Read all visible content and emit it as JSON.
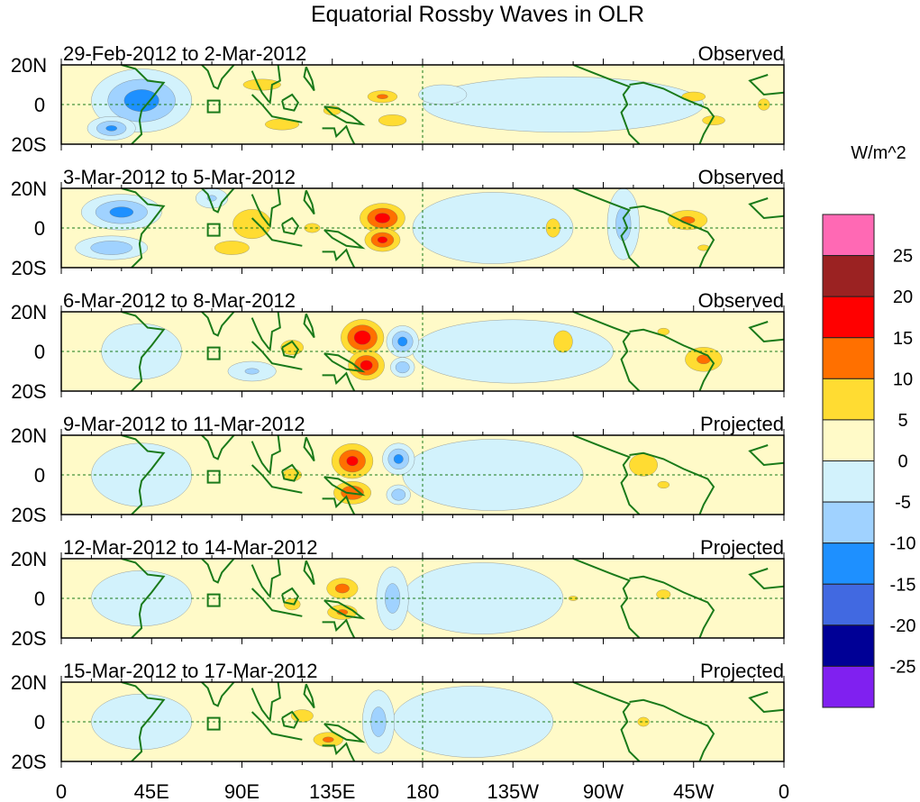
{
  "chart_data": {
    "type": "heatmap",
    "title": "Equatorial Rossby Waves in OLR",
    "colorbar_label": "W/m^2",
    "colorbar_levels": [
      "25",
      "20",
      "15",
      "10",
      "5",
      "0",
      "-5",
      "-10",
      "-15",
      "-20",
      "-25"
    ],
    "colorbar_colors": [
      "#FF69B4",
      "#9B2222",
      "#FF0000",
      "#FF7000",
      "#FFDC32",
      "#FFFAC8",
      "#D2F2FC",
      "#A0D2FF",
      "#1E90FF",
      "#4169E1",
      "#000096",
      "#8020F0"
    ],
    "x_ticks": [
      "0",
      "45E",
      "90E",
      "135E",
      "180",
      "135W",
      "90W",
      "45W",
      "0"
    ],
    "y_ticks": [
      "20N",
      "0",
      "20S"
    ],
    "lon_range": [
      0,
      360
    ],
    "lat_range": [
      -20,
      20
    ],
    "panels": [
      {
        "dates": "29-Feb-2012 to 2-Mar-2012",
        "type": "Observed",
        "features": [
          [
            250,
            0,
            70,
            14,
            -3
          ],
          [
            40,
            2,
            25,
            16,
            -13
          ],
          [
            25,
            -12,
            12,
            6,
            -11
          ],
          [
            190,
            5,
            12,
            5,
            -3
          ],
          [
            100,
            10,
            20,
            6,
            8
          ],
          [
            110,
            -10,
            18,
            6,
            8
          ],
          [
            160,
            4,
            12,
            5,
            11
          ],
          [
            165,
            -8,
            12,
            5,
            10
          ],
          [
            135,
            -3,
            15,
            8,
            6
          ],
          [
            315,
            4,
            15,
            6,
            7
          ],
          [
            325,
            -8,
            12,
            5,
            8
          ],
          [
            350,
            0,
            10,
            10,
            6
          ]
        ]
      },
      {
        "dates": "3-Mar-2012 to 5-Mar-2012",
        "type": "Observed",
        "features": [
          [
            215,
            0,
            40,
            18,
            -3
          ],
          [
            30,
            8,
            20,
            9,
            -12
          ],
          [
            25,
            -10,
            18,
            6,
            -10
          ],
          [
            280,
            2,
            8,
            18,
            -8
          ],
          [
            75,
            15,
            8,
            5,
            -6
          ],
          [
            95,
            2,
            18,
            14,
            9
          ],
          [
            85,
            -10,
            15,
            6,
            10
          ],
          [
            160,
            5,
            15,
            10,
            17
          ],
          [
            160,
            -6,
            12,
            8,
            16
          ],
          [
            125,
            0,
            10,
            6,
            7
          ],
          [
            245,
            0,
            12,
            16,
            6
          ],
          [
            312,
            4,
            16,
            8,
            11
          ],
          [
            320,
            -10,
            10,
            5,
            6
          ]
        ]
      },
      {
        "dates": "6-Mar-2012 to 8-Mar-2012",
        "type": "Observed",
        "features": [
          [
            225,
            0,
            50,
            16,
            -3
          ],
          [
            170,
            5,
            8,
            8,
            -12
          ],
          [
            170,
            -8,
            6,
            5,
            -10
          ],
          [
            40,
            0,
            20,
            14,
            -5
          ],
          [
            95,
            -10,
            12,
            5,
            -6
          ],
          [
            150,
            7,
            14,
            12,
            18
          ],
          [
            152,
            -7,
            12,
            10,
            17
          ],
          [
            115,
            2,
            12,
            8,
            8
          ],
          [
            250,
            5,
            12,
            14,
            7
          ],
          [
            320,
            -4,
            15,
            10,
            11
          ],
          [
            300,
            10,
            10,
            6,
            6
          ]
        ]
      },
      {
        "dates": "9-Mar-2012 to 11-Mar-2012",
        "type": "Projected",
        "features": [
          [
            215,
            0,
            45,
            18,
            -3
          ],
          [
            168,
            8,
            8,
            8,
            -12
          ],
          [
            168,
            -10,
            6,
            5,
            -10
          ],
          [
            40,
            0,
            25,
            16,
            -4
          ],
          [
            145,
            7,
            14,
            12,
            16
          ],
          [
            145,
            -9,
            13,
            8,
            15
          ],
          [
            115,
            0,
            12,
            8,
            7
          ],
          [
            290,
            5,
            15,
            12,
            8
          ],
          [
            300,
            -5,
            10,
            6,
            6
          ]
        ]
      },
      {
        "dates": "12-Mar-2012 to 14-Mar-2012",
        "type": "Projected",
        "features": [
          [
            210,
            0,
            40,
            18,
            -3
          ],
          [
            165,
            0,
            8,
            16,
            -8
          ],
          [
            40,
            0,
            25,
            14,
            -4
          ],
          [
            140,
            5,
            12,
            8,
            12
          ],
          [
            140,
            -7,
            12,
            6,
            11
          ],
          [
            115,
            -3,
            14,
            10,
            6
          ],
          [
            255,
            0,
            8,
            4,
            6
          ],
          [
            300,
            2,
            12,
            8,
            6
          ]
        ]
      },
      {
        "dates": "15-Mar-2012 to 17-Mar-2012",
        "type": "Projected",
        "features": [
          [
            205,
            0,
            40,
            18,
            -3
          ],
          [
            158,
            0,
            8,
            16,
            -8
          ],
          [
            40,
            0,
            25,
            14,
            -4
          ],
          [
            133,
            -9,
            12,
            6,
            11
          ],
          [
            120,
            3,
            14,
            8,
            7
          ],
          [
            290,
            0,
            10,
            8,
            6
          ]
        ]
      }
    ]
  }
}
